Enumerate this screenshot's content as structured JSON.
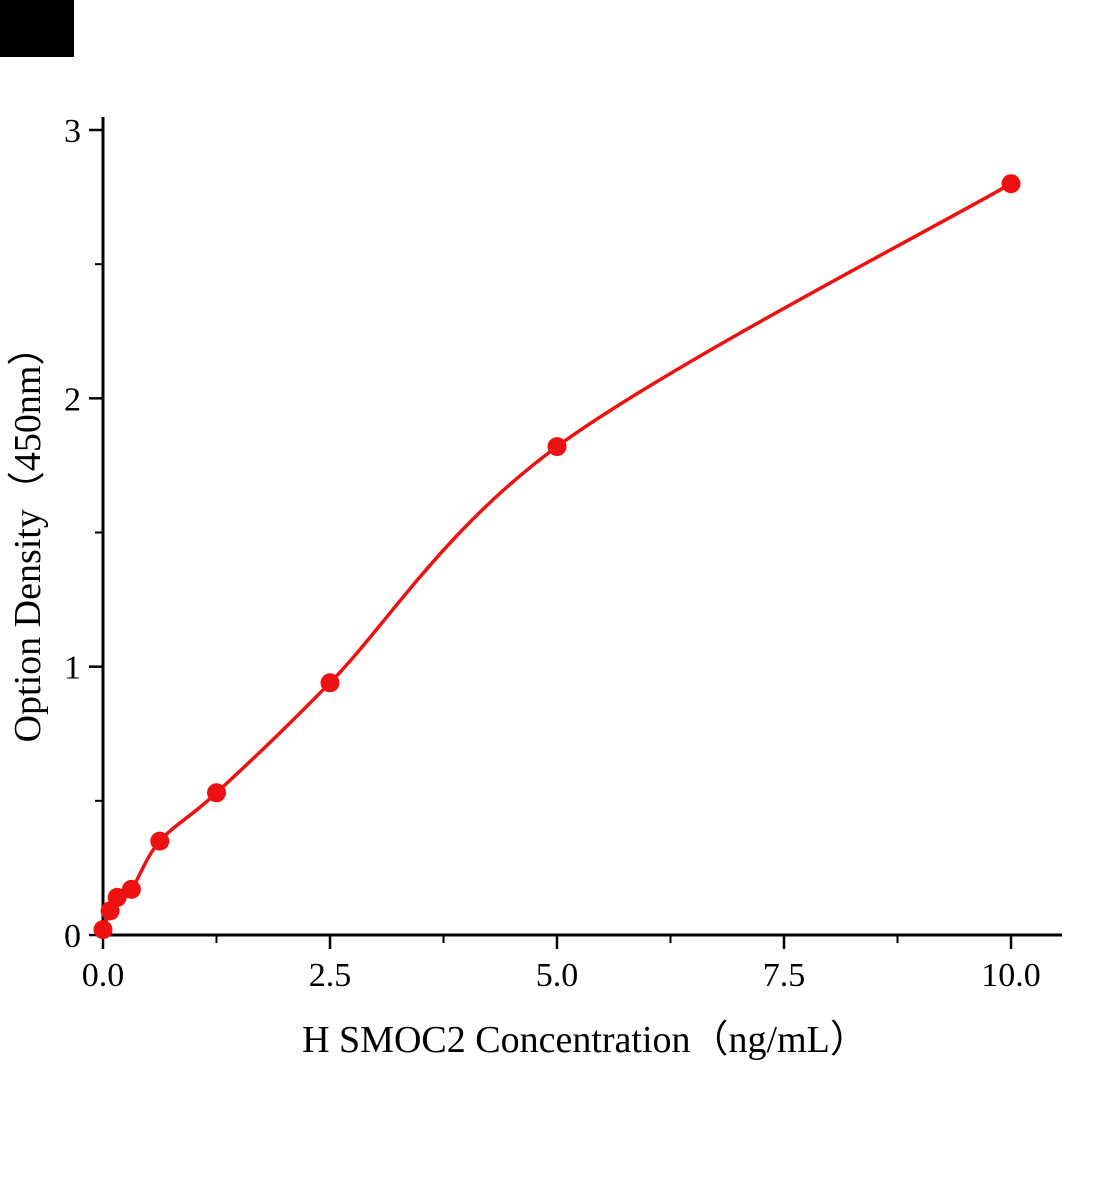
{
  "chart_data": {
    "type": "scatter",
    "title": "",
    "xlabel": "H SMOC2 Concentration（ng/mL）",
    "ylabel": "Option Density（450nm）",
    "x": [
      0,
      0.078,
      0.156,
      0.3125,
      0.625,
      1.25,
      2.5,
      5.0,
      10.0
    ],
    "y": [
      0.02,
      0.09,
      0.14,
      0.17,
      0.35,
      0.53,
      0.94,
      1.82,
      2.8
    ],
    "curve_type": "smooth fit through points",
    "xlim": [
      0,
      10.55
    ],
    "ylim": [
      0,
      3.05
    ],
    "x_major_ticks": [
      0.0,
      2.5,
      5.0,
      7.5,
      10.0
    ],
    "x_tick_labels": [
      "0.0",
      "2.5",
      "5.0",
      "7.5",
      "10.0"
    ],
    "x_minor_ticks": [
      1.25,
      3.75,
      6.25,
      8.75
    ],
    "y_major_ticks": [
      0,
      1,
      2,
      3
    ],
    "y_tick_labels": [
      "0",
      "1",
      "2",
      "3"
    ],
    "y_minor_ticks": [
      0.5,
      1.5,
      2.5
    ],
    "marker_color": "#ee1111",
    "line_color": "#ee1111",
    "axis_color": "#000000",
    "grid": false,
    "legend": null
  }
}
